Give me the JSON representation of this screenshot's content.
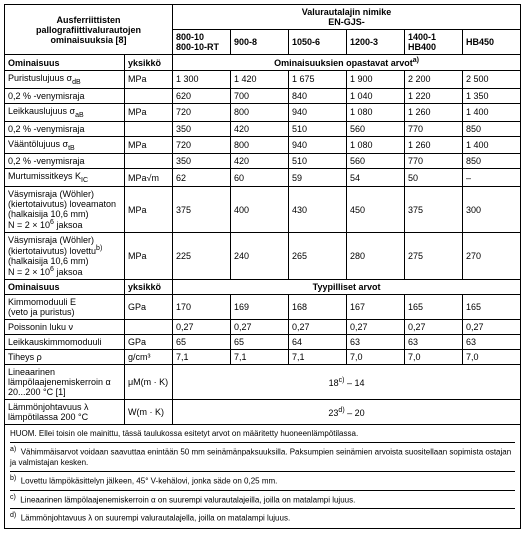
{
  "header": {
    "left_title_l1": "Ausferriittisten",
    "left_title_l2": "pallografiittivalurautojen",
    "left_title_l3": "ominaisuuksia [8]",
    "right_title_l1": "Valurautalajin nimike",
    "right_title_l2": "EN-GJS-",
    "grades": [
      "800-10\n800-10-RT",
      "900-8",
      "1050-6",
      "1200-3",
      "1400-1\nHB400",
      "HB450"
    ]
  },
  "section1": {
    "title": "Ominaisuus",
    "title_unit": "yksikkö",
    "subtitle": "Ominaisuuksien opastavat arvot"
  },
  "rows1": [
    {
      "l1": "Puristuslujuus σ",
      "l1sub": "dB",
      "u": "MPa",
      "v": [
        "1 300",
        "1 420",
        "1 675",
        "1 900",
        "2 200",
        "2 500"
      ]
    },
    {
      "l1": "0,2 % -venymisraja",
      "u": "",
      "v": [
        "620",
        "700",
        "840",
        "1 040",
        "1 220",
        "1 350"
      ]
    },
    {
      "l1": "Leikkauslujuus σ",
      "l1sub": "aB",
      "u": "MPa",
      "v": [
        "720",
        "800",
        "940",
        "1 080",
        "1 260",
        "1 400"
      ]
    },
    {
      "l1": "0,2 % -venymisraja",
      "u": "",
      "v": [
        "350",
        "420",
        "510",
        "560",
        "770",
        "850"
      ]
    },
    {
      "l1": "Vääntölujuus σ",
      "l1sub": "tB",
      "u": "MPa",
      "v": [
        "720",
        "800",
        "940",
        "1 080",
        "1 260",
        "1 400"
      ]
    },
    {
      "l1": "0,2 % -venymisraja",
      "u": "",
      "v": [
        "350",
        "420",
        "510",
        "560",
        "770",
        "850"
      ]
    },
    {
      "l1": "Murtumissitkeys K",
      "l1sub": "IC",
      "u": "MPa√m",
      "v": [
        "62",
        "60",
        "59",
        "54",
        "50",
        "–"
      ]
    }
  ],
  "fatigue": [
    {
      "l1": "Väsymisraja (Wöhler)",
      "l2": "(kiertotaivutus) loveamaton",
      "l3": "(halkaisija 10,6 mm)",
      "l4": "N = 2 × 10",
      "l4sup": "6",
      "l4b": " jaksoa",
      "u": "MPa",
      "v": [
        "375",
        "400",
        "430",
        "450",
        "375",
        "300"
      ]
    },
    {
      "l1": "Väsymisraja (Wöhler)",
      "l2": "(kiertotaivutus) lovettu",
      "l2sup": "b)",
      "l3": "(halkaisija 10,6 mm)",
      "l4": "N = 2 × 10",
      "l4sup": "6",
      "l4b": " jaksoa",
      "u": "MPa",
      "v": [
        "225",
        "240",
        "265",
        "280",
        "275",
        "270"
      ]
    }
  ],
  "section2": {
    "title": "Ominaisuus",
    "title_unit": "yksikkö",
    "subtitle": "Tyypilliset arvot"
  },
  "rows2": [
    {
      "l1": "Kimmomoduuli E",
      "l2": "(veto ja puristus)",
      "u": "GPa",
      "v": [
        "170",
        "169",
        "168",
        "167",
        "165",
        "165"
      ]
    },
    {
      "l1": "Poissonin luku ν",
      "u": "",
      "v": [
        "0,27",
        "0,27",
        "0,27",
        "0,27",
        "0,27",
        "0,27"
      ]
    },
    {
      "l1": "Leikkauskimmomoduuli",
      "u": "GPa",
      "v": [
        "65",
        "65",
        "64",
        "63",
        "63",
        "63"
      ]
    },
    {
      "l1": "Tiheys ρ",
      "u": "g/cm³",
      "v": [
        "7,1",
        "7,1",
        "7,1",
        "7,0",
        "7,0",
        "7,0"
      ]
    }
  ],
  "rows3": [
    {
      "l1": "Lineaarinen",
      "l2": "lämpölaajenemiskerroin α",
      "l3": "20...200 °C [1]",
      "u": "μM(m · K)",
      "m": "18",
      "msup": "c)",
      "m2": " – 14"
    },
    {
      "l1": "Lämmönjohtavuus λ",
      "l2": "lämpötilassa 200 °C",
      "u": "W(m · K)",
      "m": "23",
      "msup": "d)",
      "m2": " – 20"
    }
  ],
  "notes": {
    "line1": "HUOM.  Ellei toisin ole mainittu, tässä taulukossa esitetyt arvot on määritetty huoneenlämpötilassa.",
    "a": "Vähimmäisarvot voidaan saavuttaa enintään 50 mm seinämänpaksuuksilla. Paksumpien seinämien arvoista suositellaan sopimista ostajan ja valmistajan kesken.",
    "b": "Lovettu lämpökäsittelyn jälkeen, 45° V-kehälovi, jonka säde on 0,25 mm.",
    "c": "Lineaarinen lämpölaajenemiskerroin α on suurempi valurautalajeilla, joilla on matalampi lujuus.",
    "d": "Lämmönjohtavuus λ on suurempi valurautalajella, joilla on matalampi lujuus."
  }
}
